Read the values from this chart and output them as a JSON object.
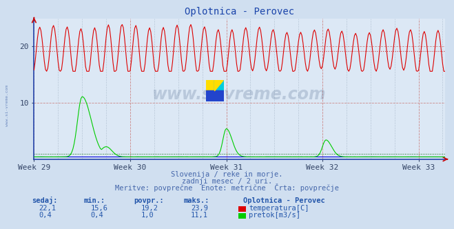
{
  "title": "Oplotnica - Perovec",
  "bg_color": "#d0dff0",
  "plot_bg_color": "#dce8f5",
  "grid_color": "#cc8888",
  "grid_color_v": "#aabbcc",
  "x_tick_labels": [
    "Week 29",
    "Week 30",
    "Week 31",
    "Week 32",
    "Week 33"
  ],
  "x_tick_positions": [
    0,
    84,
    168,
    252,
    336
  ],
  "total_points": 360,
  "ylim": [
    0,
    25
  ],
  "y_ticks": [
    10,
    20
  ],
  "temp_color": "#dd0000",
  "temp_avg_color": "#cc4444",
  "flow_color": "#00cc00",
  "flow_avg_color": "#006600",
  "height_color": "#0000dd",
  "watermark_color": "#1a3a6a",
  "watermark_alpha": 0.18,
  "subtitle1": "Slovenija / reke in morje.",
  "subtitle2": "zadnji mesec / 2 uri.",
  "subtitle3": "Meritve: povprečne  Enote: metrične  Črta: povprečje",
  "legend_title": "Oplotnica - Perovec",
  "table_headers": [
    "sedaj:",
    "min.:",
    "povpr.:",
    "maks.:"
  ],
  "row1_vals": [
    "22,1",
    "15,6",
    "19,2",
    "23,9"
  ],
  "row2_vals": [
    "0,4",
    "0,4",
    "1,0",
    "11,1"
  ],
  "row1_label": "temperatura[C]",
  "row2_label": "pretok[m3/s]",
  "temp_min": 15.6,
  "temp_max": 23.9,
  "temp_avg": 19.2,
  "flow_max": 11.1,
  "flow_avg": 1.0,
  "axis_color": "#2244aa",
  "tick_color": "#334466",
  "subtitle_color": "#4466aa",
  "header_color": "#2255aa",
  "val_color": "#2255aa"
}
